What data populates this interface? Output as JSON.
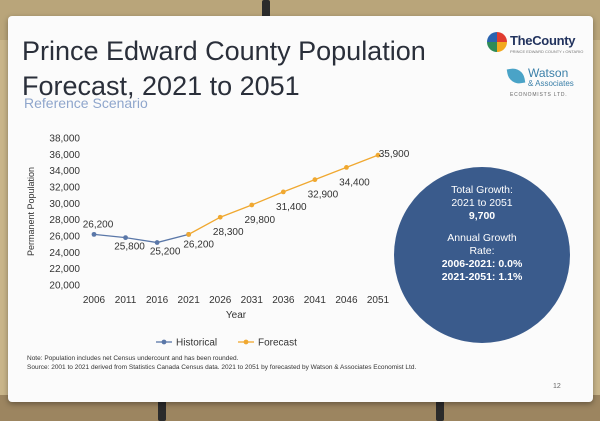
{
  "slide": {
    "title": "Prince Edward County Population Forecast, 2021 to 2051",
    "subtitle": "Reference Scenario",
    "page_number": "12",
    "notes": [
      "Note: Population includes net Census undercount and has been rounded.",
      "Source: 2001 to 2021 derived from Statistics Canada Census data. 2021 to 2051 by forecasted by Watson & Associates Economist  Ltd."
    ]
  },
  "logos": {
    "county": {
      "name": "TheCounty",
      "tagline": "PRINCE EDWARD COUNTY • ONTARIO"
    },
    "watson": {
      "line1": "Watson",
      "line2": "& Associates",
      "line3": "ECONOMISTS LTD."
    }
  },
  "summary": {
    "growth_label": "Total Growth:",
    "growth_period": "2021 to 2051",
    "growth_value": "9,700",
    "rate_label_1": "Annual Growth",
    "rate_label_2": "Rate:",
    "rate_1": "2006-2021: 0.0%",
    "rate_2": "2021-2051: 1.1%",
    "circle_color": "#3a5b8c"
  },
  "chart_data": {
    "type": "line",
    "xlabel": "Year",
    "ylabel": "Permanent Population",
    "ylim": [
      20000,
      38000
    ],
    "ytick_step": 2000,
    "yticks": [
      "20,000",
      "22,000",
      "24,000",
      "26,000",
      "28,000",
      "30,000",
      "32,000",
      "34,000",
      "36,000",
      "38,000"
    ],
    "x": [
      "2006",
      "2011",
      "2016",
      "2021",
      "2026",
      "2031",
      "2036",
      "2041",
      "2046",
      "2051"
    ],
    "grid": false,
    "legend_placement": "bottom",
    "series": [
      {
        "name": "Historical",
        "color": "#5a77a8",
        "x": [
          "2006",
          "2011",
          "2016",
          "2021"
        ],
        "values": [
          26200,
          25800,
          25200,
          26200
        ],
        "labels": [
          "26,200",
          "25,800",
          "25,200",
          "26,200"
        ]
      },
      {
        "name": "Forecast",
        "color": "#f0a830",
        "x": [
          "2021",
          "2026",
          "2031",
          "2036",
          "2041",
          "2046",
          "2051"
        ],
        "values": [
          26200,
          28300,
          29800,
          31400,
          32900,
          34400,
          35900
        ],
        "labels": [
          "",
          "28,300",
          "29,800",
          "31,400",
          "32,900",
          "34,400",
          "35,900"
        ]
      }
    ]
  }
}
